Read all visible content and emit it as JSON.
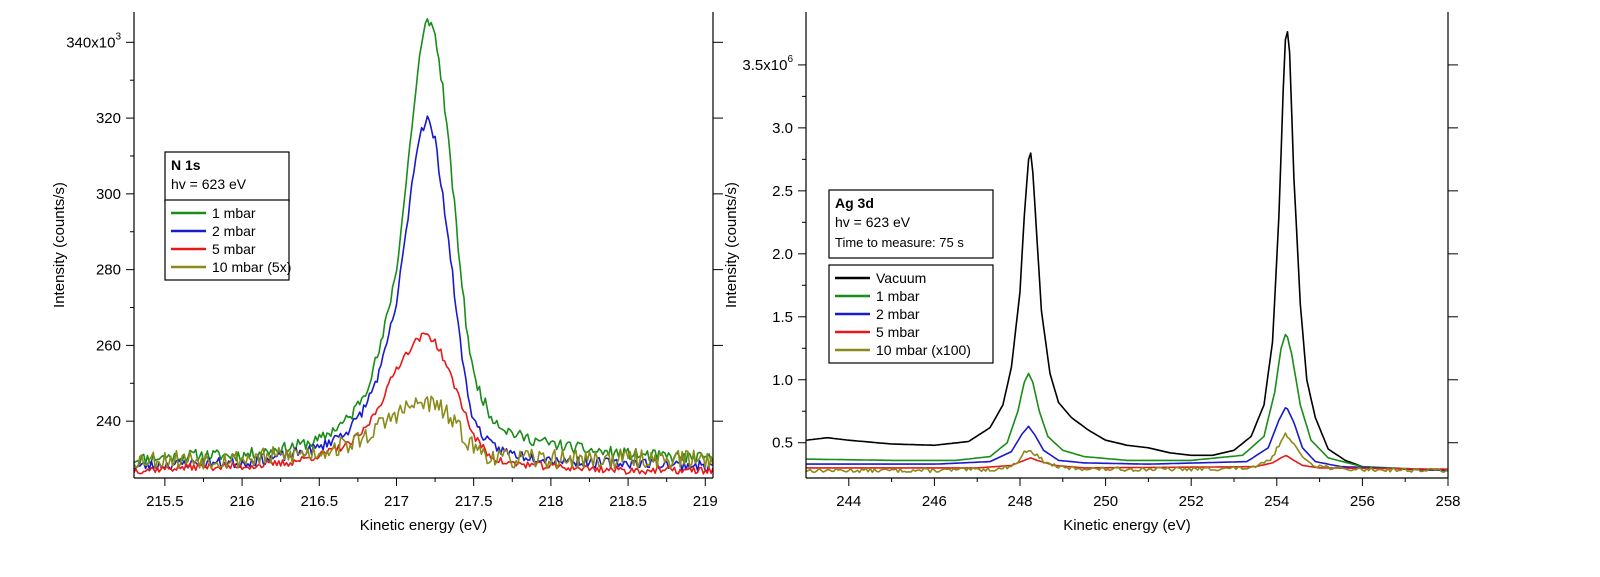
{
  "chart_data": [
    {
      "type": "line",
      "xlabel": "Kinetic energy (eV)",
      "ylabel": "Intensity (counts/s)",
      "xlim": [
        215.3,
        219.05
      ],
      "ylim": [
        225,
        348
      ],
      "xticks": [
        {
          "v": 215.5,
          "label": "215.5"
        },
        {
          "v": 216,
          "label": "216"
        },
        {
          "v": 216.5,
          "label": "216.5"
        },
        {
          "v": 217,
          "label": "217"
        },
        {
          "v": 217.5,
          "label": "217.5"
        },
        {
          "v": 218,
          "label": "218"
        },
        {
          "v": 218.5,
          "label": "218.5"
        },
        {
          "v": 219,
          "label": "219"
        }
      ],
      "yticks": [
        {
          "v": 240,
          "label": "240"
        },
        {
          "v": 260,
          "label": "260"
        },
        {
          "v": 280,
          "label": "280"
        },
        {
          "v": 300,
          "label": "300"
        },
        {
          "v": 320,
          "label": "320"
        },
        {
          "v": 340,
          "label": "340x10",
          "sup": "3"
        }
      ],
      "legend_title": "N 1s",
      "legend_lines": [
        "hv = 623 eV"
      ],
      "legend_placement": "left",
      "series": [
        {
          "name": "1 mbar",
          "color": "#1a8c1a",
          "noise": 1.6,
          "seed": 11,
          "x": [
            215.3,
            215.7,
            216.0,
            216.3,
            216.5,
            216.7,
            216.8,
            216.9,
            217.0,
            217.05,
            217.1,
            217.15,
            217.2,
            217.25,
            217.3,
            217.35,
            217.4,
            217.45,
            217.5,
            217.6,
            217.7,
            217.8,
            218.0,
            218.3,
            218.6,
            219.05
          ],
          "y": [
            230,
            231,
            231,
            233,
            235,
            241,
            248,
            260,
            280,
            298,
            318,
            336,
            347,
            342,
            328,
            308,
            286,
            266,
            252,
            242,
            238,
            236,
            234,
            232,
            231,
            230
          ]
        },
        {
          "name": "2 mbar",
          "color": "#1a1acc",
          "noise": 1.4,
          "seed": 23,
          "x": [
            215.3,
            215.7,
            216.0,
            216.3,
            216.5,
            216.7,
            216.8,
            216.9,
            217.0,
            217.05,
            217.1,
            217.15,
            217.2,
            217.25,
            217.3,
            217.35,
            217.4,
            217.45,
            217.5,
            217.6,
            217.7,
            217.8,
            218.0,
            218.3,
            218.6,
            219.05
          ],
          "y": [
            228,
            229,
            229,
            231,
            233,
            238,
            244,
            254,
            271,
            286,
            303,
            316,
            320,
            314,
            300,
            283,
            265,
            250,
            240,
            234,
            232,
            231,
            230,
            229,
            229,
            228
          ]
        },
        {
          "name": "5 mbar",
          "color": "#e81818",
          "noise": 1.0,
          "seed": 37,
          "x": [
            215.3,
            215.7,
            216.0,
            216.3,
            216.5,
            216.7,
            216.8,
            216.9,
            217.0,
            217.1,
            217.15,
            217.2,
            217.25,
            217.3,
            217.4,
            217.5,
            217.6,
            217.7,
            218.0,
            218.5,
            219.05
          ],
          "y": [
            227,
            228,
            228,
            229,
            231,
            234,
            238,
            245,
            254,
            260,
            262,
            263,
            261,
            257,
            247,
            236,
            231,
            229,
            228,
            227,
            227
          ]
        },
        {
          "name": "10 mbar (5x)",
          "color": "#8a8a1a",
          "noise": 2.6,
          "seed": 53,
          "x": [
            215.3,
            215.7,
            216.0,
            216.3,
            216.5,
            216.7,
            216.8,
            216.9,
            217.0,
            217.1,
            217.2,
            217.3,
            217.4,
            217.5,
            217.6,
            217.7,
            218.0,
            218.5,
            219.05
          ],
          "y": [
            230,
            230,
            230,
            231,
            232,
            234,
            236,
            239,
            242,
            244,
            245,
            243,
            238,
            233,
            231,
            230,
            230,
            230,
            230
          ]
        }
      ]
    },
    {
      "type": "line",
      "xlabel": "Kinetic energy (eV)",
      "ylabel": "Intensity (counts/s)",
      "xlim": [
        243.0,
        258.0
      ],
      "ylim": [
        0.22,
        3.92
      ],
      "xticks": [
        {
          "v": 244,
          "label": "244"
        },
        {
          "v": 246,
          "label": "246"
        },
        {
          "v": 248,
          "label": "248"
        },
        {
          "v": 250,
          "label": "250"
        },
        {
          "v": 252,
          "label": "252"
        },
        {
          "v": 254,
          "label": "254"
        },
        {
          "v": 256,
          "label": "256"
        },
        {
          "v": 258,
          "label": "258"
        }
      ],
      "yticks": [
        {
          "v": 0.5,
          "label": "0.5"
        },
        {
          "v": 1.0,
          "label": "1.0"
        },
        {
          "v": 1.5,
          "label": "1.5"
        },
        {
          "v": 2.0,
          "label": "2.0"
        },
        {
          "v": 2.5,
          "label": "2.5"
        },
        {
          "v": 3.0,
          "label": "3.0"
        },
        {
          "v": 3.5,
          "label": "3.5x10",
          "sup": "6"
        }
      ],
      "legend_title": "Ag 3d",
      "legend_lines": [
        "hv = 623 eV",
        "Time to measure: 75 s"
      ],
      "legend_placement": "left",
      "series": [
        {
          "name": "Vacuum",
          "color": "#000000",
          "noise": 0.0,
          "seed": 3,
          "x": [
            243.0,
            243.5,
            244.0,
            245.0,
            246.0,
            246.8,
            247.3,
            247.6,
            247.8,
            248.0,
            248.1,
            248.2,
            248.25,
            248.3,
            248.4,
            248.5,
            248.7,
            248.9,
            249.2,
            249.6,
            250.0,
            250.5,
            251.0,
            251.5,
            252.0,
            252.5,
            253.0,
            253.4,
            253.7,
            253.9,
            254.05,
            254.15,
            254.22,
            254.3,
            254.4,
            254.55,
            254.7,
            254.9,
            255.2,
            255.6,
            256.0,
            257.0,
            258.0
          ],
          "y": [
            0.52,
            0.54,
            0.52,
            0.49,
            0.48,
            0.51,
            0.62,
            0.8,
            1.1,
            1.7,
            2.3,
            2.75,
            2.8,
            2.65,
            2.1,
            1.55,
            1.05,
            0.82,
            0.7,
            0.6,
            0.52,
            0.48,
            0.46,
            0.42,
            0.4,
            0.4,
            0.44,
            0.55,
            0.8,
            1.3,
            2.3,
            3.3,
            3.86,
            3.6,
            2.6,
            1.6,
            1.0,
            0.7,
            0.45,
            0.36,
            0.31,
            0.29,
            0.28
          ]
        },
        {
          "name": "1 mbar",
          "color": "#1a8c1a",
          "noise": 0.0,
          "seed": 5,
          "x": [
            243.0,
            245.0,
            246.5,
            247.3,
            247.7,
            247.95,
            248.1,
            248.2,
            248.3,
            248.45,
            248.65,
            249.0,
            249.5,
            250.5,
            252.0,
            253.2,
            253.7,
            253.95,
            254.1,
            254.22,
            254.35,
            254.55,
            254.8,
            255.2,
            256.0,
            258.0
          ],
          "y": [
            0.37,
            0.36,
            0.36,
            0.39,
            0.5,
            0.75,
            0.98,
            1.05,
            0.98,
            0.75,
            0.55,
            0.44,
            0.39,
            0.36,
            0.36,
            0.4,
            0.55,
            0.9,
            1.25,
            1.38,
            1.2,
            0.8,
            0.52,
            0.38,
            0.31,
            0.28
          ]
        },
        {
          "name": "2 mbar",
          "color": "#1a1acc",
          "noise": 0.0,
          "seed": 7,
          "x": [
            243.0,
            246.0,
            247.3,
            247.8,
            248.05,
            248.2,
            248.35,
            248.55,
            248.9,
            249.5,
            251.0,
            253.3,
            253.8,
            254.05,
            254.22,
            254.4,
            254.6,
            254.9,
            255.5,
            258.0
          ],
          "y": [
            0.33,
            0.33,
            0.35,
            0.43,
            0.57,
            0.63,
            0.56,
            0.44,
            0.36,
            0.34,
            0.33,
            0.35,
            0.46,
            0.68,
            0.79,
            0.66,
            0.46,
            0.35,
            0.31,
            0.28
          ]
        },
        {
          "name": "5 mbar",
          "color": "#e81818",
          "noise": 0.0,
          "seed": 9,
          "x": [
            243.0,
            247.0,
            247.8,
            248.1,
            248.25,
            248.4,
            248.8,
            249.5,
            253.5,
            253.9,
            254.1,
            254.22,
            254.35,
            254.6,
            255.0,
            258.0
          ],
          "y": [
            0.3,
            0.3,
            0.32,
            0.36,
            0.38,
            0.36,
            0.32,
            0.3,
            0.31,
            0.34,
            0.38,
            0.4,
            0.37,
            0.32,
            0.3,
            0.29
          ]
        },
        {
          "name": "10 mbar (x100)",
          "color": "#8a8a1a",
          "noise": 0.016,
          "seed": 13,
          "x": [
            243.0,
            246.0,
            247.5,
            247.9,
            248.1,
            248.2,
            248.35,
            248.6,
            249.0,
            250.0,
            252.0,
            253.5,
            253.9,
            254.1,
            254.22,
            254.35,
            254.55,
            254.9,
            255.5,
            258.0
          ],
          "y": [
            0.28,
            0.28,
            0.29,
            0.33,
            0.42,
            0.45,
            0.41,
            0.34,
            0.3,
            0.29,
            0.29,
            0.3,
            0.38,
            0.52,
            0.57,
            0.52,
            0.4,
            0.32,
            0.29,
            0.28
          ]
        }
      ]
    }
  ]
}
